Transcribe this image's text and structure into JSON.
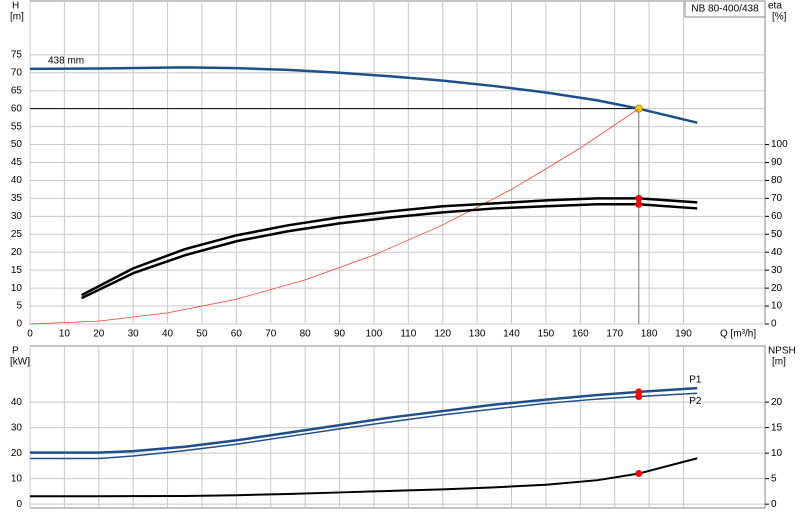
{
  "chart_data": [
    {
      "type": "line",
      "title": "NB 80-400/438",
      "y_label": "H",
      "y_unit": "[m]",
      "y2_label": "eta",
      "y2_unit": "[%]",
      "x_label": "Q [m³/h]",
      "xlim": [
        0,
        213.7
      ],
      "xticks": [
        0,
        10,
        20,
        30,
        40,
        50,
        60,
        70,
        80,
        90,
        100,
        110,
        120,
        130,
        140,
        150,
        160,
        170,
        180,
        190
      ],
      "ylim": [
        0,
        90
      ],
      "yticks": [
        0,
        5,
        10,
        15,
        20,
        25,
        30,
        35,
        40,
        45,
        50,
        55,
        60,
        65,
        70,
        75
      ],
      "y2lim": [
        0,
        180
      ],
      "y2ticks": [
        0,
        10,
        20,
        30,
        40,
        50,
        60,
        70,
        80,
        90,
        100
      ],
      "grid": true,
      "operating_point": {
        "x": 177,
        "y": 60
      },
      "series": [
        {
          "name": "438 mm",
          "color": "#1f4e8c",
          "line_width": 2.5,
          "marker_color": "#ffd700",
          "x": [
            0,
            20,
            45,
            60,
            75,
            90,
            105,
            120,
            135,
            150,
            165,
            177,
            194
          ],
          "values": [
            71.1,
            71.2,
            71.5,
            71.3,
            70.8,
            70,
            69,
            67.8,
            66.3,
            64.5,
            62.3,
            60,
            56.1
          ]
        },
        {
          "color": "#ff3b30",
          "line_width": 0.8,
          "x": [
            0,
            20,
            40,
            60,
            80,
            100,
            120,
            140,
            160,
            177
          ],
          "values": [
            0,
            0.8,
            3.1,
            6.9,
            12.3,
            19.2,
            27.6,
            37.5,
            49,
            60
          ]
        },
        {
          "color": "#000000",
          "line_width": 2.5,
          "marker_color": "#ff0000",
          "axis": "y2",
          "x": [
            15,
            30,
            45,
            60,
            75,
            90,
            105,
            120,
            135,
            150,
            165,
            177,
            194
          ],
          "values": [
            16.1,
            31,
            41.7,
            49.4,
            55,
            59.4,
            62.8,
            65.6,
            67.2,
            68.9,
            70,
            70,
            67.8
          ]
        },
        {
          "color": "#000000",
          "line_width": 2.5,
          "marker_color": "#ff0000",
          "axis": "y2",
          "x": [
            15,
            30,
            45,
            60,
            75,
            90,
            105,
            120,
            135,
            150,
            165,
            177,
            194
          ],
          "values": [
            14.4,
            28.3,
            38.3,
            46.1,
            51.7,
            56.1,
            59.4,
            62.2,
            64.4,
            65.6,
            66.7,
            66.7,
            64.4
          ]
        }
      ]
    },
    {
      "type": "line",
      "y_label": "P",
      "y_unit": "[kW]",
      "y2_label": "NPSH",
      "y2_unit": "[m]",
      "xlim": [
        0,
        213.7
      ],
      "ylim": [
        -1.5,
        62
      ],
      "yticks": [
        0,
        10,
        20,
        30,
        40
      ],
      "y2lim": [
        -0.75,
        31
      ],
      "y2ticks": [
        0,
        5,
        10,
        15,
        20
      ],
      "grid": true,
      "series": [
        {
          "name": "P1",
          "color": "#1f4e8c",
          "line_width": 2.5,
          "marker_color": "#ff0000",
          "x": [
            0,
            20,
            30,
            45,
            60,
            75,
            90,
            105,
            120,
            135,
            150,
            165,
            177,
            194
          ],
          "values": [
            20.2,
            20.2,
            20.8,
            22.5,
            25,
            28,
            31,
            34,
            36.5,
            39,
            41,
            42.8,
            44,
            45.5
          ]
        },
        {
          "name": "P2",
          "color": "#1f4e8c",
          "line_width": 1.5,
          "marker_color": "#ff0000",
          "x": [
            0,
            20,
            30,
            45,
            60,
            75,
            90,
            105,
            120,
            135,
            150,
            165,
            177,
            194
          ],
          "values": [
            17.9,
            17.9,
            18.9,
            21,
            23.5,
            26.5,
            29.5,
            32.3,
            35,
            37.3,
            39.5,
            41.2,
            42.2,
            43.5
          ]
        },
        {
          "color": "#000000",
          "line_width": 2,
          "marker_color": "#ff0000",
          "axis": "y2",
          "x": [
            0,
            20,
            45,
            60,
            75,
            90,
            105,
            120,
            135,
            150,
            165,
            177,
            194
          ],
          "values": [
            1.55,
            1.55,
            1.6,
            1.75,
            2,
            2.3,
            2.6,
            2.9,
            3.3,
            3.8,
            4.7,
            6,
            9
          ]
        }
      ]
    }
  ]
}
